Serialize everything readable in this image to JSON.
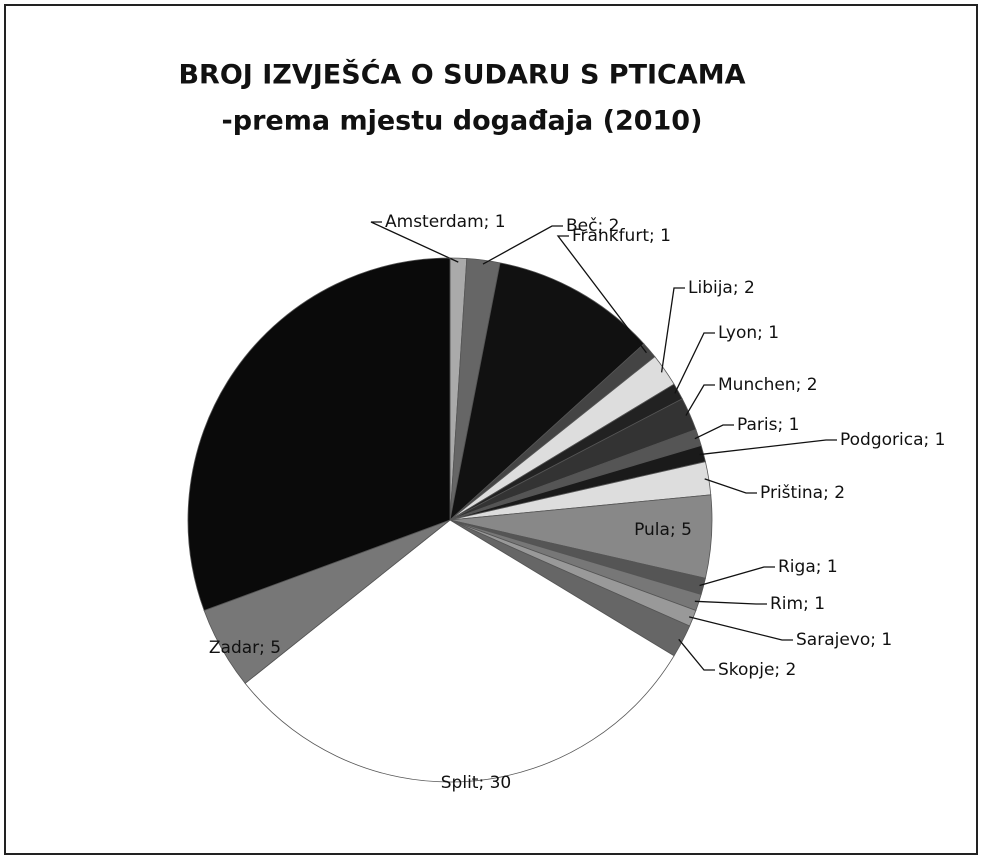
{
  "chart_data": {
    "type": "pie",
    "title": "BROJ IZVJEŠĆA O SUDARU S PTICAMA",
    "subtitle": "-prema mjestu događaja (2010)",
    "categories": [
      "Amsterdam",
      "Beč",
      null,
      "Frankfurt",
      "Libija",
      "Lyon",
      "Munchen",
      "Paris",
      "Podgorica",
      "Priština",
      "Pula",
      "Riga",
      "Rim",
      "Sarajevo",
      "Skopje",
      "Split",
      "Zadar",
      null
    ],
    "values": [
      1,
      2,
      10,
      1,
      2,
      1,
      2,
      1,
      1,
      2,
      5,
      1,
      1,
      1,
      2,
      30,
      5,
      30
    ],
    "value_labels": [
      "Amsterdam; 1",
      "Beč; 2",
      null,
      "Frankfurt; 1",
      "Libija; 2",
      "Lyon; 1",
      "Munchen; 2",
      "Paris; 1",
      "Podgorica; 1",
      "Priština; 2",
      "Pula; 5",
      "Riga; 1",
      "Rim; 1",
      "Sarajevo; 1",
      "Skopje; 2",
      "Split; 30",
      "Zadar; 5",
      null
    ],
    "colors": [
      "#aaaaaa",
      "#666666",
      "#111111",
      "#444444",
      "#dddddd",
      "#222222",
      "#333333",
      "#555555",
      "#1a1a1a",
      "#dddddd",
      "#888888",
      "#555555",
      "#777777",
      "#999999",
      "#666666",
      "#ffffff",
      "#777777",
      "#0a0a0a"
    ]
  }
}
